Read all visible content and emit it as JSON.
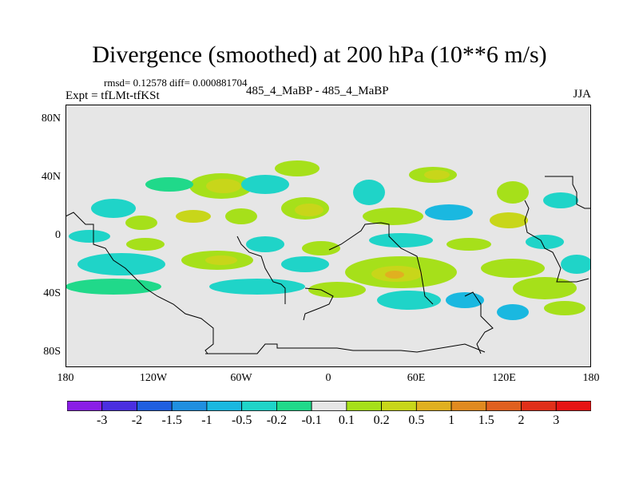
{
  "title": "Divergence (smoothed) at 200 hPa (10**6 m/s)",
  "stats": "rmsd= 0.12578 diff= 0.000881704",
  "expt": "Expt = tfLMt-tfKSt",
  "center_label": "485_4_MaBP - 485_4_MaBP",
  "season": "JJA",
  "lat_ticks": [
    "80N",
    "40N",
    "0",
    "40S",
    "80S"
  ],
  "lon_ticks": [
    "180",
    "120W",
    "60W",
    "0",
    "60E",
    "120E",
    "180"
  ],
  "colorbar": {
    "labels": [
      "-3",
      "-2",
      "-1.5",
      "-1",
      "-0.5",
      "-0.2",
      "-0.1",
      "0.1",
      "0.2",
      "0.5",
      "1",
      "1.5",
      "2",
      "3"
    ],
    "colors": [
      "#8a1ee6",
      "#4a2fe0",
      "#1f5fe0",
      "#1f8fe0",
      "#1ab8e0",
      "#1fd4c8",
      "#20d98a",
      "#e6e6e6",
      "#a6e01a",
      "#c8d61a",
      "#e0b020",
      "#e08a20",
      "#e0601f",
      "#e0301a",
      "#e61414"
    ]
  },
  "field_colors": {
    "background": "#e6e6e6",
    "neg_weak": "#20d98a",
    "neg_mid": "#1fd4c8",
    "neg_strong": "#1ab8e0",
    "pos_weak": "#a6e01a",
    "pos_mid": "#c8d61a",
    "pos_strong": "#e0b020"
  }
}
